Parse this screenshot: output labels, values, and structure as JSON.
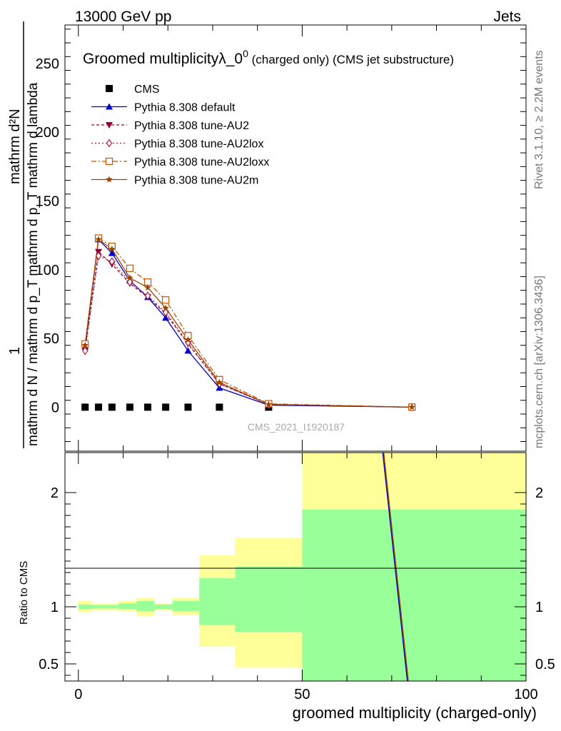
{
  "header": {
    "left": "13000 GeV pp",
    "right": "Jets"
  },
  "title": {
    "main": "Groomed multiplicityλ_0",
    "sup": "0",
    "sub": " (charged only) (CMS jet substructure)"
  },
  "ylabel": {
    "numerator": "mathrm d²N",
    "fraction_top": "1",
    "denominator": "mathrm d N / mathrm d p_T mathrm d p_T mathrm d lambda"
  },
  "ratio_ylabel": "Ratio to CMS",
  "xlabel": "groomed multiplicity (charged-only)",
  "watermark": "CMS_2021_I1920187",
  "side_right_top": "Rivet 3.1.10, ≥ 2.2M events",
  "side_right_bottom": "mcplots.cern.ch [arXiv:1306.3436]",
  "colors": {
    "band_yellow": "#ffff99",
    "band_green": "#99ff99",
    "default": "#0000cc",
    "au2": "#990033",
    "au2lox": "#aa2244",
    "au2loxx": "#cc5500",
    "au2m": "#994400"
  },
  "chart_data": {
    "type": "line",
    "xlim": [
      -3,
      100
    ],
    "ylim": [
      -32,
      278
    ],
    "xticks": [
      0,
      50,
      100
    ],
    "xtick_labels": [
      "0",
      "50",
      "100"
    ],
    "yticks": [
      0,
      50,
      100,
      150,
      200,
      250
    ],
    "ytick_labels": [
      "0",
      "50",
      "100",
      "150",
      "200",
      "250"
    ],
    "ratio_ylim": [
      0.35,
      2.35
    ],
    "ratio_yticks": [
      0.5,
      1,
      2
    ],
    "ratio_ytick_labels": [
      "0.5",
      "1",
      "2"
    ],
    "legend_placement": "top-left",
    "data": {
      "name": "CMS",
      "x": [
        1.5,
        4.5,
        7.5,
        11.5,
        15.5,
        19.5,
        24.5,
        31.5,
        42.5,
        74.5
      ],
      "y": [
        0,
        0,
        0,
        0,
        0,
        0,
        0,
        0,
        0,
        0
      ]
    },
    "series": [
      {
        "name": "Pythia 8.308 default",
        "key": "default",
        "marker": "triangle-up",
        "dash": "",
        "x": [
          1.5,
          4.5,
          7.5,
          11.5,
          15.5,
          19.5,
          24.5,
          31.5,
          42.5,
          74.5
        ],
        "y": [
          44,
          122,
          112,
          92,
          80,
          65,
          41,
          14,
          1.5,
          0
        ]
      },
      {
        "name": "Pythia 8.308 tune-AU2",
        "key": "au2",
        "marker": "triangle-down",
        "dash": "4,3",
        "x": [
          1.5,
          4.5,
          7.5,
          11.5,
          15.5,
          19.5,
          24.5,
          31.5,
          42.5,
          74.5
        ],
        "y": [
          42,
          113,
          104,
          90,
          80,
          68,
          46,
          17,
          2,
          0
        ]
      },
      {
        "name": "Pythia 8.308 tune-AU2lox",
        "key": "au2lox",
        "marker": "diamond-open",
        "dash": "2,3",
        "x": [
          1.5,
          4.5,
          7.5,
          11.5,
          15.5,
          19.5,
          24.5,
          31.5,
          42.5,
          74.5
        ],
        "y": [
          41,
          110,
          106,
          91,
          81,
          69,
          47,
          17,
          2,
          0
        ]
      },
      {
        "name": "Pythia 8.308 tune-AU2loxx",
        "key": "au2loxx",
        "marker": "square-open",
        "dash": "7,3,2,3",
        "x": [
          1.5,
          4.5,
          7.5,
          11.5,
          15.5,
          19.5,
          24.5,
          31.5,
          42.5,
          74.5
        ],
        "y": [
          46,
          123,
          117,
          101,
          91,
          78,
          52,
          20,
          2.5,
          0
        ]
      },
      {
        "name": "Pythia 8.308 tune-AU2m",
        "key": "au2m",
        "marker": "star",
        "dash": "",
        "x": [
          1.5,
          4.5,
          7.5,
          11.5,
          15.5,
          19.5,
          24.5,
          31.5,
          42.5,
          74.5
        ],
        "y": [
          45,
          122,
          115,
          94,
          87,
          72,
          49,
          18,
          2,
          0
        ]
      }
    ],
    "ratio_bands": [
      {
        "x0": 0,
        "x1": 3,
        "yellow": [
          0.95,
          1.05
        ],
        "green": [
          0.98,
          1.02
        ]
      },
      {
        "x0": 3,
        "x1": 6,
        "yellow": [
          0.97,
          1.03
        ],
        "green": [
          0.985,
          1.015
        ]
      },
      {
        "x0": 6,
        "x1": 9,
        "yellow": [
          0.97,
          1.03
        ],
        "green": [
          0.985,
          1.015
        ]
      },
      {
        "x0": 9,
        "x1": 13,
        "yellow": [
          0.96,
          1.05
        ],
        "green": [
          0.98,
          1.03
        ]
      },
      {
        "x0": 13,
        "x1": 17,
        "yellow": [
          0.92,
          1.08
        ],
        "green": [
          0.96,
          1.05
        ]
      },
      {
        "x0": 17,
        "x1": 21,
        "yellow": [
          0.97,
          1.03
        ],
        "green": [
          0.98,
          1.02
        ]
      },
      {
        "x0": 21,
        "x1": 27,
        "yellow": [
          0.93,
          1.08
        ],
        "green": [
          0.96,
          1.05
        ]
      },
      {
        "x0": 27,
        "x1": 35,
        "yellow": [
          0.65,
          1.45
        ],
        "green": [
          0.84,
          1.25
        ]
      },
      {
        "x0": 35,
        "x1": 50,
        "yellow": [
          0.47,
          1.6
        ],
        "green": [
          0.78,
          1.35
        ]
      },
      {
        "x0": 50,
        "x1": 100,
        "yellow": [
          0.35,
          2.35
        ],
        "green": [
          0.35,
          1.85
        ]
      }
    ],
    "ratio_lines": [
      {
        "key": "default",
        "x": [
          68.0,
          73.5
        ],
        "y": [
          2.35,
          0.35
        ]
      },
      {
        "key": "au2m",
        "x": [
          68.2,
          73.7
        ],
        "y": [
          2.35,
          0.35
        ]
      }
    ]
  }
}
